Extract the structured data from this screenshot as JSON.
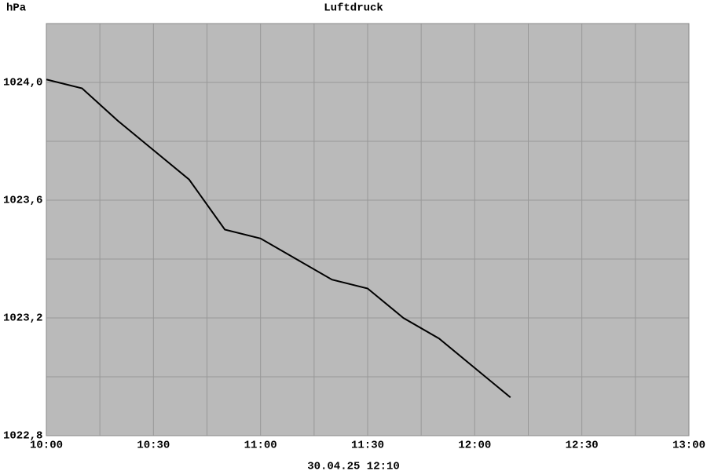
{
  "chart_data": {
    "type": "line",
    "title": "Luftdruck",
    "y_label": "hPa",
    "footer": "30.04.25 12:10",
    "x": [
      "10:00",
      "10:10",
      "10:20",
      "10:30",
      "10:40",
      "10:50",
      "11:00",
      "11:10",
      "11:20",
      "11:30",
      "11:40",
      "11:50",
      "12:00",
      "12:10"
    ],
    "values": [
      1024.01,
      1023.98,
      1023.87,
      1023.77,
      1023.67,
      1023.5,
      1023.47,
      1023.4,
      1023.33,
      1023.3,
      1023.2,
      1023.13,
      1023.03,
      1022.93
    ],
    "color": "#000000",
    "xlim": [
      "10:00",
      "13:00"
    ],
    "xticks": [
      "10:00",
      "10:30",
      "11:00",
      "11:30",
      "12:00",
      "12:30",
      "13:00"
    ],
    "xminor": [
      "10:15",
      "10:45",
      "11:15",
      "11:45",
      "12:15",
      "12:45"
    ],
    "ylim": [
      1022.8,
      1024.2
    ],
    "yticks": [
      {
        "value": 1022.8,
        "label": "1022,8"
      },
      {
        "value": 1023.2,
        "label": "1023,2"
      },
      {
        "value": 1023.6,
        "label": "1023,6"
      },
      {
        "value": 1024.0,
        "label": "1024,0"
      }
    ],
    "yminor": [
      1023.0,
      1023.4,
      1023.8
    ],
    "grid": true
  }
}
